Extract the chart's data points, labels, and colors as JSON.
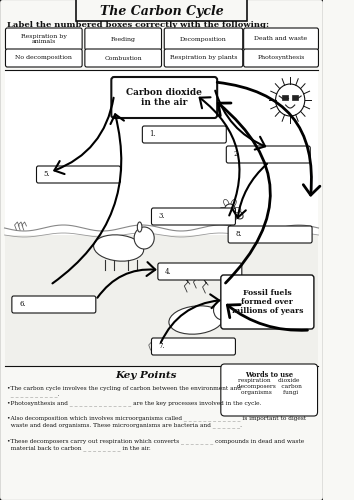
{
  "title": "The Carbon Cycle",
  "instruction": "Label the numbered boxes correctly with the following:",
  "labels_row1": [
    "Respiration by\nanimals",
    "Feeding",
    "Decomposition",
    "Death and waste"
  ],
  "labels_row2": [
    "No decomposition",
    "Combustion",
    "Respiration by plants",
    "Photosynthesis"
  ],
  "center_box": "Carbon dioxide\nin the air",
  "fossil_fuels": "Fossil fuels\nformed over\nmillions of years",
  "key_points_title": "Key Points",
  "words_to_use_title": "Words to use",
  "words_to_use": "respiration    dioxide\ndecomposers   carbon\norganisms      fungi",
  "key_points": [
    "•The carbon cycle involves the cycling of carbon between the environment and\n  _ _ _ _ _ _ _ _ _ _.",
    "•Photosynthesis and _ _ _ _ _ _ _ _ _ _ _ _ _ are the key processes involved in the cycle.",
    "•Also decomposition which involves microorganisms called _ _ _ _ _ _ _ _ _ _ _ _ is important to digest\n  waste and dead organisms. These microorganisms are bacteria and _ _ _ _ _ _.",
    "•These decomposers carry out respiration which converts _ _ _ _ _ _ _ compounds in dead and waste\n  material back to carbon _ _ _ _ _ _ _ _ in the air."
  ],
  "bg_color": "#f8f8f5",
  "box_color": "#ffffff",
  "border_color": "#111111",
  "text_color": "#111111",
  "diagram_bg_top": "#e8ede8",
  "diagram_bg_bot": "#dce6dc",
  "underground_color": "#d0dcd0"
}
